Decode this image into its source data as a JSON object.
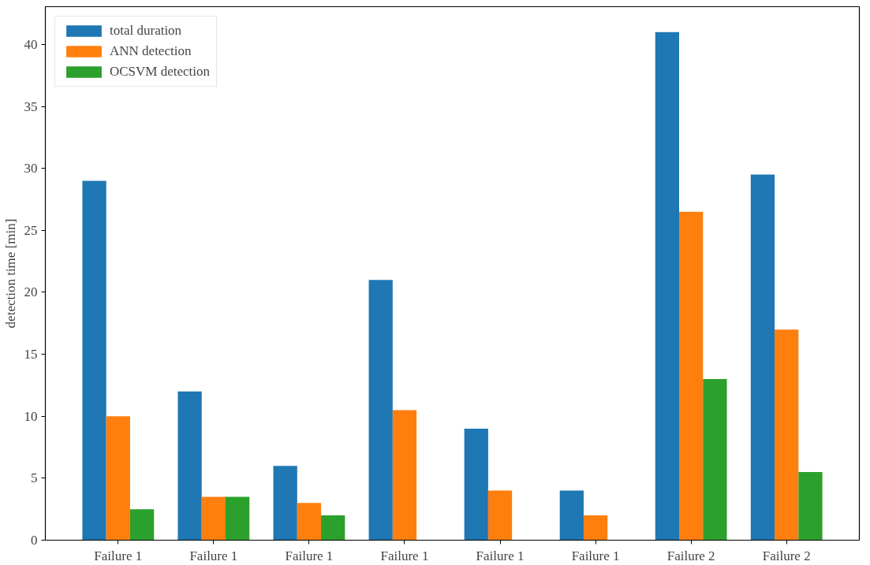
{
  "chart_data": {
    "type": "bar",
    "ylabel": "detection time [min]",
    "categories": [
      "Failure 1",
      "Failure 1",
      "Failure 1",
      "Failure 1",
      "Failure 1",
      "Failure 1",
      "Failure 2",
      "Failure 2"
    ],
    "series": [
      {
        "name": "total duration",
        "color": "#1f77b4",
        "values": [
          29,
          12,
          6,
          21,
          9,
          4,
          41,
          29.5
        ]
      },
      {
        "name": "ANN detection",
        "color": "#ff7f0e",
        "values": [
          10,
          3.5,
          3,
          10.5,
          4,
          2,
          26.5,
          17
        ]
      },
      {
        "name": "OCSVM detection",
        "color": "#2ca02c",
        "values": [
          2.5,
          3.5,
          2,
          0,
          0,
          0,
          13,
          5.5
        ]
      }
    ],
    "ylim": [
      0,
      43.05
    ],
    "yticks": [
      0,
      5,
      10,
      15,
      20,
      25,
      30,
      35,
      40
    ],
    "grid": false,
    "legend": "top left"
  }
}
